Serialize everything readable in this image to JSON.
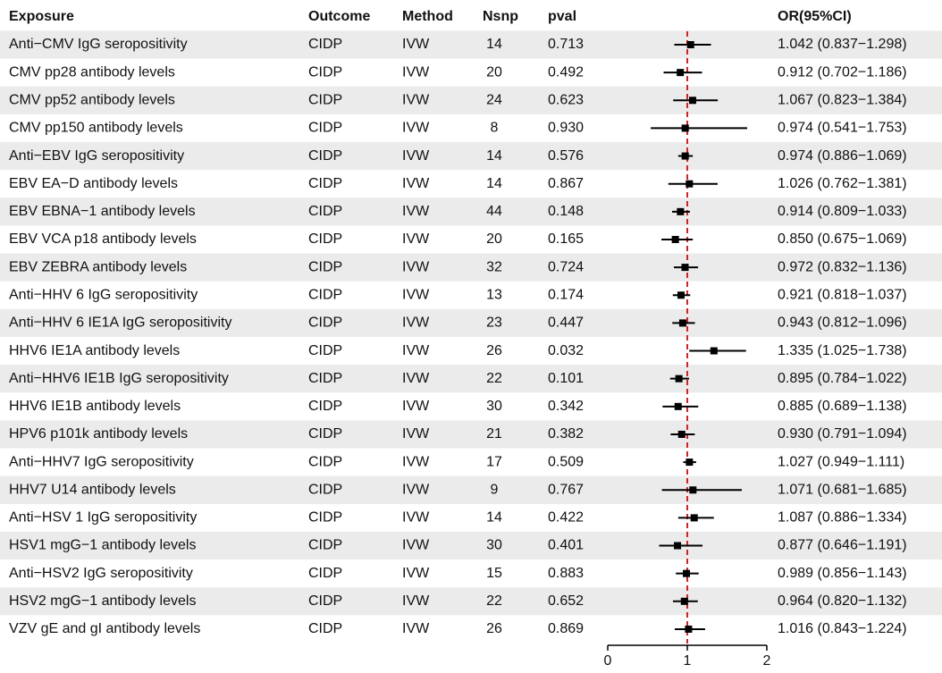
{
  "chart_data": {
    "type": "forest",
    "columns": {
      "exposure": "Exposure",
      "outcome": "Outcome",
      "method": "Method",
      "nsnp": "Nsnp",
      "pval": "pval",
      "or": "OR(95%CI)"
    },
    "exposure": [
      "Anti−CMV IgG seropositivity",
      "CMV pp28 antibody levels",
      "CMV pp52 antibody levels",
      "CMV pp150 antibody levels",
      "Anti−EBV IgG seropositivity",
      "EBV EA−D antibody levels",
      "EBV EBNA−1 antibody levels",
      "EBV VCA p18 antibody levels",
      "EBV ZEBRA antibody levels",
      "Anti−HHV 6 IgG seropositivity",
      "Anti−HHV 6 IE1A IgG seropositivity",
      "HHV6 IE1A antibody levels",
      "Anti−HHV6 IE1B IgG seropositivity",
      "HHV6 IE1B antibody levels",
      "HPV6 p101k antibody levels",
      "Anti−HHV7 IgG seropositivity",
      "HHV7 U14 antibody levels",
      "Anti−HSV 1 IgG seropositivity",
      "HSV1 mgG−1 antibody levels",
      "Anti−HSV2 IgG seropositivity",
      "HSV2 mgG−1 antibody levels",
      "VZV gE and gI antibody levels"
    ],
    "outcome": [
      "CIDP",
      "CIDP",
      "CIDP",
      "CIDP",
      "CIDP",
      "CIDP",
      "CIDP",
      "CIDP",
      "CIDP",
      "CIDP",
      "CIDP",
      "CIDP",
      "CIDP",
      "CIDP",
      "CIDP",
      "CIDP",
      "CIDP",
      "CIDP",
      "CIDP",
      "CIDP",
      "CIDP",
      "CIDP"
    ],
    "method": [
      "IVW",
      "IVW",
      "IVW",
      "IVW",
      "IVW",
      "IVW",
      "IVW",
      "IVW",
      "IVW",
      "IVW",
      "IVW",
      "IVW",
      "IVW",
      "IVW",
      "IVW",
      "IVW",
      "IVW",
      "IVW",
      "IVW",
      "IVW",
      "IVW",
      "IVW"
    ],
    "nsnp": [
      14,
      20,
      24,
      8,
      14,
      14,
      44,
      20,
      32,
      13,
      23,
      26,
      22,
      30,
      21,
      17,
      9,
      14,
      30,
      15,
      22,
      26
    ],
    "pval": [
      "0.713",
      "0.492",
      "0.623",
      "0.930",
      "0.576",
      "0.867",
      "0.148",
      "0.165",
      "0.724",
      "0.174",
      "0.447",
      "0.032",
      "0.101",
      "0.342",
      "0.382",
      "0.509",
      "0.767",
      "0.422",
      "0.401",
      "0.883",
      "0.652",
      "0.869"
    ],
    "values": [
      1.042,
      0.912,
      1.067,
      0.974,
      0.974,
      1.026,
      0.914,
      0.85,
      0.972,
      0.921,
      0.943,
      1.335,
      0.895,
      0.885,
      0.93,
      1.027,
      1.071,
      1.087,
      0.877,
      0.989,
      0.964,
      1.016
    ],
    "lower": [
      0.837,
      0.702,
      0.823,
      0.541,
      0.886,
      0.762,
      0.809,
      0.675,
      0.832,
      0.818,
      0.812,
      1.025,
      0.784,
      0.689,
      0.791,
      0.949,
      0.681,
      0.886,
      0.646,
      0.856,
      0.82,
      0.843
    ],
    "upper": [
      1.298,
      1.186,
      1.384,
      1.753,
      1.069,
      1.381,
      1.033,
      1.069,
      1.136,
      1.037,
      1.096,
      1.738,
      1.022,
      1.138,
      1.094,
      1.111,
      1.685,
      1.334,
      1.191,
      1.143,
      1.132,
      1.224
    ],
    "value_labels": [
      "1.042 (0.837−1.298)",
      "0.912 (0.702−1.186)",
      "1.067 (0.823−1.384)",
      "0.974 (0.541−1.753)",
      "0.974 (0.886−1.069)",
      "1.026 (0.762−1.381)",
      "0.914 (0.809−1.033)",
      "0.850 (0.675−1.069)",
      "0.972 (0.832−1.136)",
      "0.921 (0.818−1.037)",
      "0.943 (0.812−1.096)",
      "1.335 (1.025−1.738)",
      "0.895 (0.784−1.022)",
      "0.885 (0.689−1.138)",
      "0.930 (0.791−1.094)",
      "1.027 (0.949−1.111)",
      "1.071 (0.681−1.685)",
      "1.087 (0.886−1.334)",
      "0.877 (0.646−1.191)",
      "0.989 (0.856−1.143)",
      "0.964 (0.820−1.132)",
      "1.016 (0.843−1.224)"
    ],
    "xlim": [
      0,
      2
    ],
    "xticks": [
      0,
      1,
      2
    ],
    "reference": 1,
    "color": "#000000",
    "reference_color": "#e41a1c",
    "stripe_color": "#ebebeb"
  }
}
